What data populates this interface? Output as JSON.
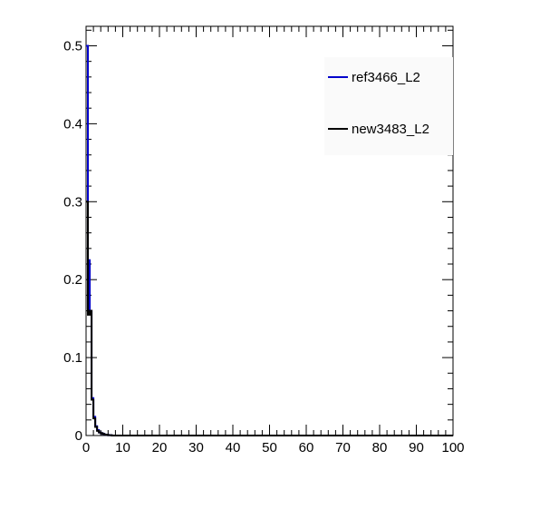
{
  "chart_data": {
    "type": "line",
    "title": "",
    "xlabel": "",
    "ylabel": "",
    "xlim": [
      0,
      100
    ],
    "ylim": [
      0,
      0.525
    ],
    "x_ticks": [
      0,
      10,
      20,
      30,
      40,
      50,
      60,
      70,
      80,
      90,
      100
    ],
    "x_tick_labels": [
      "0",
      "10",
      "20",
      "30",
      "40",
      "50",
      "60",
      "70",
      "80",
      "90",
      "100"
    ],
    "y_ticks": [
      0,
      0.1,
      0.2,
      0.3,
      0.4,
      0.5
    ],
    "y_tick_labels": [
      "0",
      "0.1",
      "0.2",
      "0.3",
      "0.4",
      "0.5"
    ],
    "grid": false,
    "legend_position": "top-right",
    "series": [
      {
        "name": "ref3466_L2",
        "color": "#0000cc",
        "x": [
          0,
          0.5,
          1,
          1.5,
          2,
          2.5,
          3,
          3.5,
          4,
          4.5,
          5,
          5.5,
          6,
          7
        ],
        "values": [
          0.5,
          0.225,
          0.16,
          0.048,
          0.024,
          0.012,
          0.007,
          0.004,
          0.003,
          0.002,
          0.001,
          0.001,
          0.0005,
          0
        ]
      },
      {
        "name": "new3483_L2",
        "color": "#000000",
        "x": [
          0,
          0.5,
          1,
          1.5,
          2,
          2.5,
          3,
          3.5,
          4,
          4.5,
          5,
          5.5,
          6,
          7
        ],
        "values": [
          0.3,
          0.155,
          0.16,
          0.046,
          0.022,
          0.011,
          0.006,
          0.004,
          0.003,
          0.002,
          0.001,
          0.001,
          0.0005,
          0
        ]
      }
    ]
  }
}
